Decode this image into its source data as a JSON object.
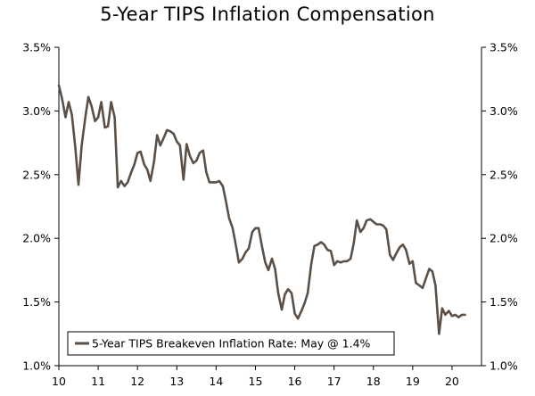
{
  "chart_data": {
    "type": "line",
    "title": "5-Year TIPS Inflation Compensation",
    "xlabel": "",
    "ylabel": "",
    "xlim": [
      10,
      20.75
    ],
    "ylim": [
      1.0,
      3.5
    ],
    "x_ticks": [
      10,
      11,
      12,
      13,
      14,
      15,
      16,
      17,
      18,
      19,
      20
    ],
    "x_tick_labels": [
      "10",
      "11",
      "12",
      "13",
      "14",
      "15",
      "16",
      "17",
      "18",
      "19",
      "20"
    ],
    "y_ticks": [
      1.0,
      1.5,
      2.0,
      2.5,
      3.0,
      3.5
    ],
    "y_tick_labels": [
      "1.0%",
      "1.5%",
      "2.0%",
      "2.5%",
      "3.0%",
      "3.5%"
    ],
    "y_tick_labels_right": [
      "1.0%",
      "1.5%",
      "2.0%",
      "2.5%",
      "3.0%",
      "3.5%"
    ],
    "grid": false,
    "legend_position": "bottom-left",
    "colors": {
      "line": "#5a5048",
      "axis": "#000000"
    },
    "series": [
      {
        "name": "5-Year TIPS Breakeven Inflation Rate: May @ 1.4%",
        "x": [
          10.0,
          10.08,
          10.17,
          10.25,
          10.33,
          10.42,
          10.5,
          10.58,
          10.67,
          10.75,
          10.83,
          10.92,
          11.0,
          11.08,
          11.17,
          11.25,
          11.33,
          11.42,
          11.5,
          11.58,
          11.67,
          11.75,
          11.83,
          11.92,
          12.0,
          12.08,
          12.17,
          12.25,
          12.33,
          12.42,
          12.5,
          12.58,
          12.67,
          12.75,
          12.83,
          12.92,
          13.0,
          13.08,
          13.17,
          13.25,
          13.33,
          13.42,
          13.5,
          13.58,
          13.67,
          13.75,
          13.83,
          13.92,
          14.0,
          14.08,
          14.17,
          14.25,
          14.33,
          14.42,
          14.5,
          14.58,
          14.67,
          14.75,
          14.83,
          14.92,
          15.0,
          15.08,
          15.17,
          15.25,
          15.33,
          15.42,
          15.5,
          15.58,
          15.67,
          15.75,
          15.83,
          15.92,
          16.0,
          16.08,
          16.17,
          16.25,
          16.33,
          16.42,
          16.5,
          16.58,
          16.67,
          16.75,
          16.83,
          16.92,
          17.0,
          17.08,
          17.17,
          17.25,
          17.33,
          17.42,
          17.5,
          17.58,
          17.67,
          17.75,
          17.83,
          17.92,
          18.0,
          18.08,
          18.17,
          18.25,
          18.33,
          18.42,
          18.5,
          18.58,
          18.67,
          18.75,
          18.83,
          18.92,
          19.0,
          19.08,
          19.17,
          19.25,
          19.33,
          19.42,
          19.5,
          19.58,
          19.67,
          19.75,
          19.83,
          19.92,
          20.0,
          20.08,
          20.17,
          20.25,
          20.33
        ],
        "y": [
          3.2,
          3.1,
          2.95,
          3.07,
          2.97,
          2.71,
          2.42,
          2.73,
          2.94,
          3.11,
          3.04,
          2.92,
          2.95,
          3.07,
          2.87,
          2.88,
          3.07,
          2.95,
          2.4,
          2.45,
          2.41,
          2.44,
          2.51,
          2.58,
          2.67,
          2.68,
          2.58,
          2.54,
          2.45,
          2.6,
          2.81,
          2.73,
          2.79,
          2.85,
          2.84,
          2.82,
          2.76,
          2.73,
          2.46,
          2.74,
          2.65,
          2.59,
          2.61,
          2.67,
          2.69,
          2.52,
          2.44,
          2.44,
          2.44,
          2.45,
          2.41,
          2.29,
          2.16,
          2.08,
          1.95,
          1.81,
          1.84,
          1.89,
          1.92,
          2.05,
          2.08,
          2.08,
          1.93,
          1.81,
          1.75,
          1.84,
          1.76,
          1.57,
          1.44,
          1.56,
          1.6,
          1.57,
          1.41,
          1.37,
          1.43,
          1.49,
          1.57,
          1.8,
          1.94,
          1.95,
          1.97,
          1.95,
          1.91,
          1.9,
          1.79,
          1.82,
          1.81,
          1.82,
          1.82,
          1.84,
          1.96,
          2.14,
          2.05,
          2.08,
          2.14,
          2.15,
          2.13,
          2.11,
          2.11,
          2.1,
          2.07,
          1.87,
          1.83,
          1.88,
          1.93,
          1.95,
          1.91,
          1.8,
          1.82,
          1.65,
          1.63,
          1.61,
          1.68,
          1.76,
          1.74,
          1.63,
          1.25,
          1.45,
          1.4,
          1.43,
          1.39,
          1.4,
          1.38,
          1.4,
          1.4
        ],
        "color": "#5a5048"
      }
    ]
  }
}
